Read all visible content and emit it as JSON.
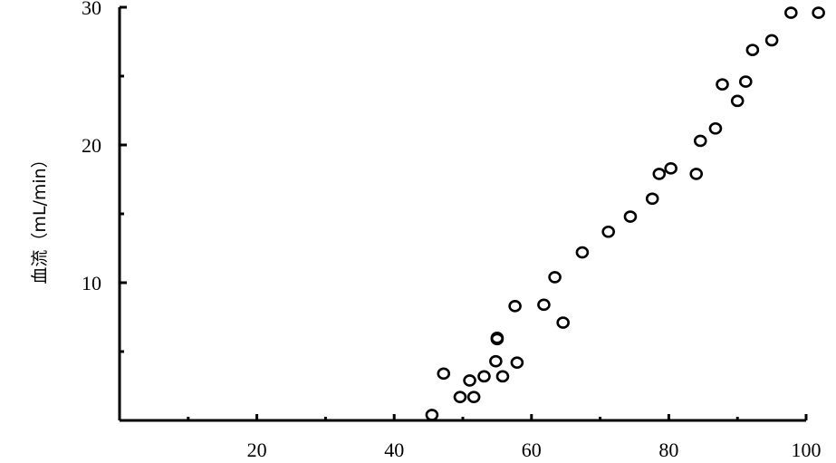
{
  "chart_data": {
    "type": "scatter",
    "title": "",
    "xlabel": "",
    "ylabel": "血流（mL/min）",
    "xlim": [
      0,
      100
    ],
    "ylim": [
      0,
      30
    ],
    "x_ticks": [
      20,
      40,
      60,
      80,
      100
    ],
    "x_minor_ticks": [
      10,
      30,
      50,
      70,
      90
    ],
    "y_ticks": [
      10,
      20,
      30
    ],
    "y_minor_ticks": [
      5,
      15,
      25
    ],
    "grid": false,
    "series": [
      {
        "points": [
          [
            45.5,
            0.4
          ],
          [
            47.2,
            3.4
          ],
          [
            49.6,
            1.7
          ],
          [
            51.0,
            2.9
          ],
          [
            51.6,
            1.7
          ],
          [
            53.1,
            3.2
          ],
          [
            54.8,
            4.3
          ],
          [
            55.0,
            5.9
          ],
          [
            55.0,
            6.0
          ],
          [
            55.8,
            3.2
          ],
          [
            57.6,
            8.3
          ],
          [
            57.9,
            4.2
          ],
          [
            61.8,
            8.4
          ],
          [
            63.4,
            10.4
          ],
          [
            64.6,
            7.1
          ],
          [
            67.4,
            12.2
          ],
          [
            71.2,
            13.7
          ],
          [
            74.4,
            14.8
          ],
          [
            77.6,
            16.1
          ],
          [
            78.6,
            17.9
          ],
          [
            80.3,
            18.3
          ],
          [
            84.0,
            17.9
          ],
          [
            84.6,
            20.3
          ],
          [
            86.8,
            21.2
          ],
          [
            87.8,
            24.4
          ],
          [
            90.0,
            23.2
          ],
          [
            91.2,
            24.6
          ],
          [
            92.2,
            26.9
          ],
          [
            95.0,
            27.6
          ],
          [
            97.8,
            29.6
          ],
          [
            101.8,
            29.6
          ]
        ]
      }
    ]
  }
}
